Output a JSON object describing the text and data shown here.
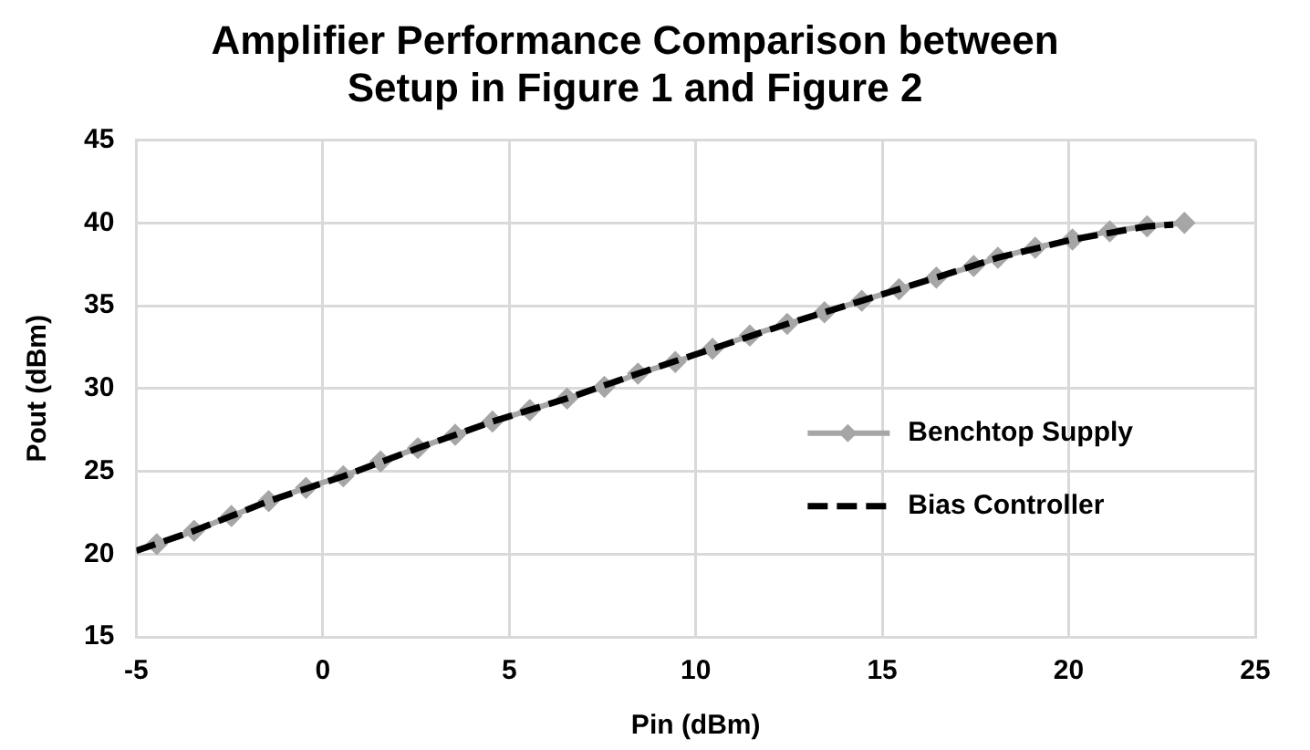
{
  "chart_data": {
    "type": "line",
    "title": "Amplifier Performance Comparison between Setup in Figure 1 and Figure 2",
    "xlabel": "Pin (dBm)",
    "ylabel": "Pout (dBm)",
    "xlim": [
      -5,
      25
    ],
    "xticks": [
      -5,
      0,
      5,
      10,
      15,
      20,
      25
    ],
    "ylim": [
      15,
      45
    ],
    "yticks": [
      15,
      20,
      25,
      30,
      35,
      40,
      45
    ],
    "grid": true,
    "legend": "right",
    "series": [
      {
        "name": "Benchtop Supply",
        "color": "#a6a6a6",
        "marker": "diamond",
        "line_style": "solid",
        "x": [
          -4.45,
          -3.45,
          -2.45,
          -1.45,
          -0.45,
          0.55,
          1.55,
          2.55,
          3.55,
          4.55,
          5.55,
          6.55,
          7.55,
          8.45,
          9.45,
          10.45,
          11.45,
          12.45,
          13.45,
          14.45,
          15.45,
          16.45,
          17.45,
          18.1,
          19.1,
          20.1,
          21.1,
          22.1,
          23.1
        ],
        "values": [
          20.6,
          21.4,
          22.3,
          23.2,
          24.0,
          24.7,
          25.6,
          26.4,
          27.2,
          28.0,
          28.7,
          29.4,
          30.1,
          30.9,
          31.6,
          32.4,
          33.2,
          33.9,
          34.6,
          35.3,
          36.0,
          36.7,
          37.4,
          37.9,
          38.5,
          39.0,
          39.5,
          39.8,
          40.0
        ]
      },
      {
        "name": "Bias Controller",
        "color": "#000000",
        "marker": "none",
        "line_style": "dashed",
        "x": [
          -5,
          -3.45,
          -1.45,
          0.55,
          2.55,
          4.55,
          6.55,
          8.45,
          10.45,
          12.45,
          14.45,
          16.45,
          18.1,
          20.1,
          22.1,
          22.8
        ],
        "values": [
          20.2,
          21.4,
          23.2,
          24.7,
          26.4,
          28.0,
          29.4,
          30.9,
          32.4,
          33.9,
          35.3,
          36.7,
          37.9,
          39.0,
          39.8,
          39.9
        ]
      }
    ]
  }
}
